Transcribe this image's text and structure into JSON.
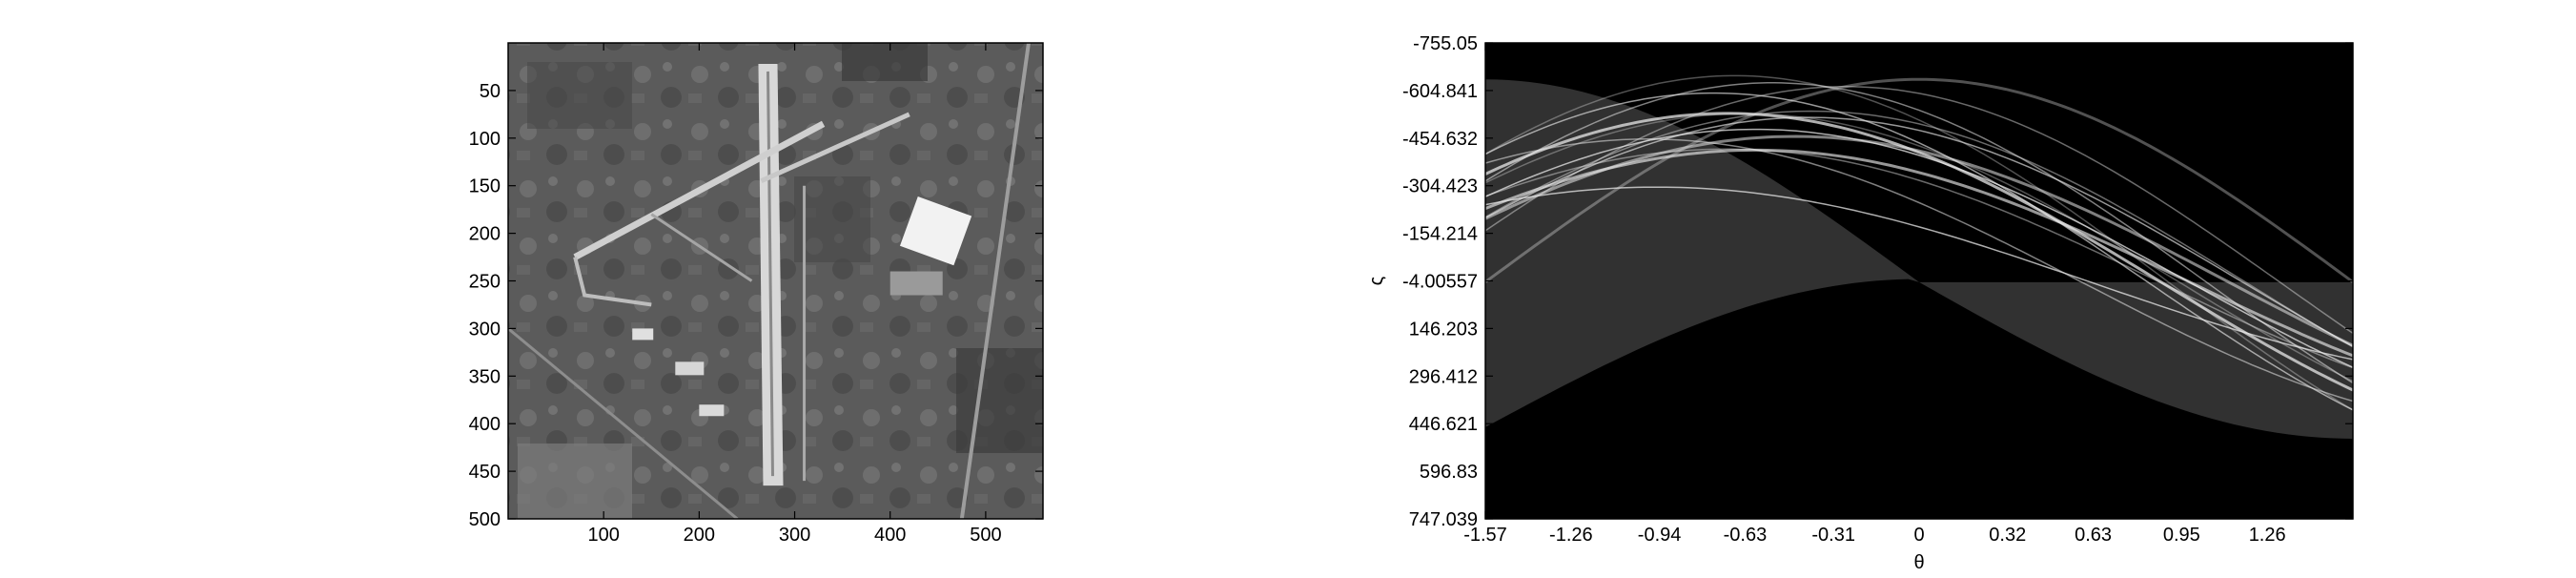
{
  "chart_data": [
    {
      "type": "heatmap",
      "content": "grayscale aerial photograph of an airport",
      "x_ticks": [
        100,
        200,
        300,
        400,
        500
      ],
      "y_ticks": [
        50,
        100,
        150,
        200,
        250,
        300,
        350,
        400,
        450,
        500
      ],
      "xlim": [
        0,
        560
      ],
      "ylim": [
        500,
        0
      ],
      "colormap": "gray"
    },
    {
      "type": "heatmap",
      "content": "Hough transform accumulator of the image",
      "xlabel": "θ",
      "ylabel": "ς",
      "x_ticks": [
        "-1.57",
        "-1.26",
        "-0.94",
        "-0.63",
        "-0.31",
        "0",
        "0.32",
        "0.63",
        "0.95",
        "1.26"
      ],
      "y_ticks": [
        "-755.05",
        "-604.841",
        "-454.632",
        "-304.423",
        "-154.214",
        "-4.00557",
        "146.203",
        "296.412",
        "446.621",
        "596.83",
        "747.039"
      ],
      "xlim": [
        -1.57,
        1.57
      ],
      "ylim": [
        -755.05,
        747.039
      ],
      "colormap": "gray",
      "background": "#000000",
      "ridge_color": "#e8e8e8"
    }
  ]
}
